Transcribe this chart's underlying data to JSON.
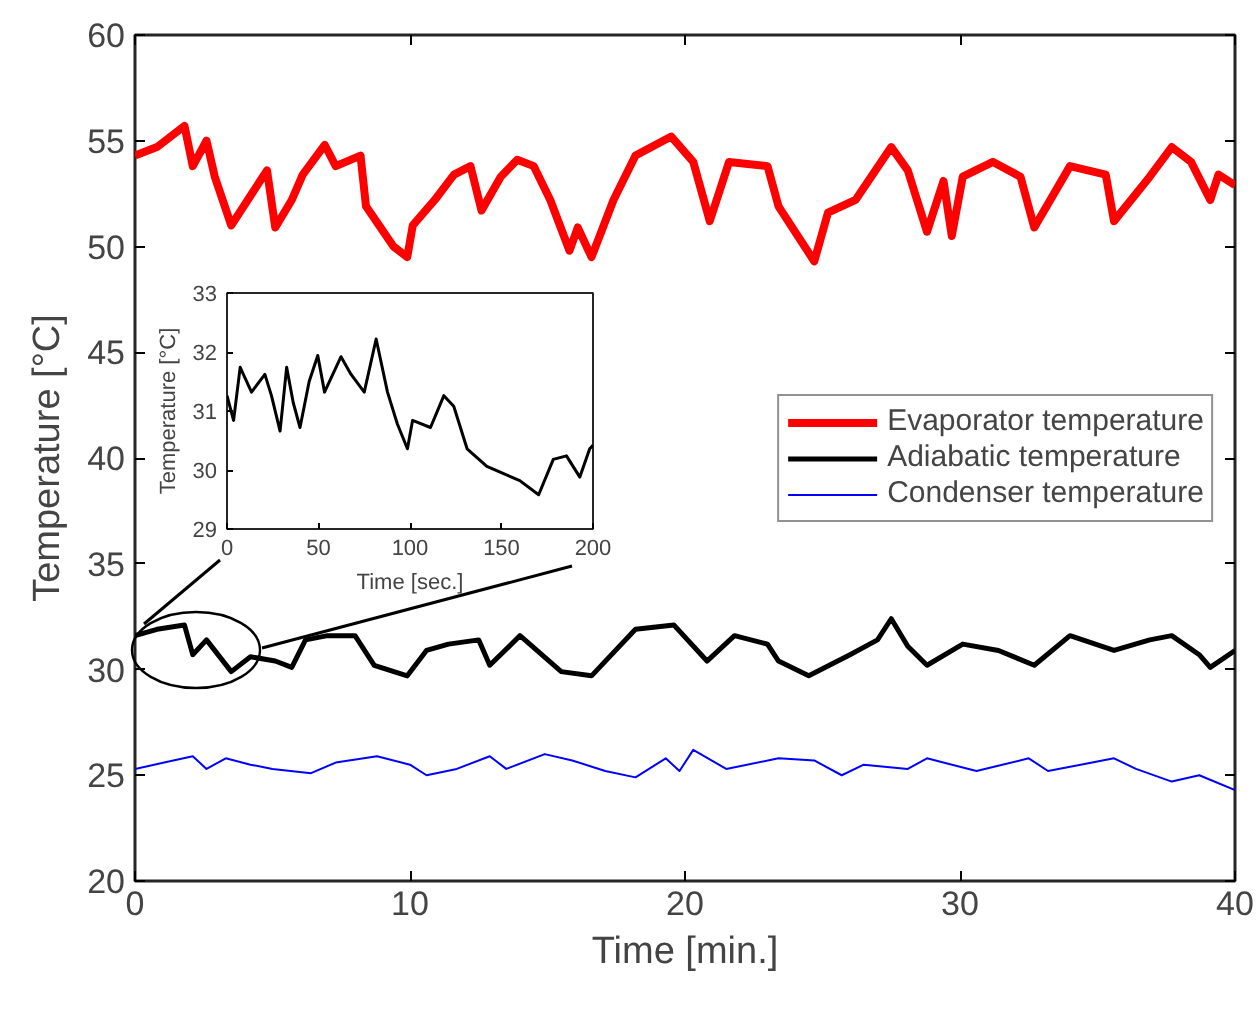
{
  "chart_data": [
    {
      "type": "line",
      "xlabel": "Time [min.]",
      "ylabel": "Temperature [°C]",
      "xlim": [
        0,
        40
      ],
      "ylim": [
        20,
        60
      ],
      "xticks": [
        0,
        10,
        20,
        30,
        40
      ],
      "yticks": [
        20,
        25,
        30,
        35,
        40,
        45,
        50,
        55,
        60
      ],
      "legend": "right",
      "grid": false,
      "series": [
        {
          "name": "Evaporator temperature",
          "color": "#ff0000",
          "x": [
            0,
            0.8,
            1.8,
            2.1,
            2.6,
            2.9,
            3.5,
            4.2,
            4.8,
            5.1,
            5.7,
            6.1,
            6.9,
            7.3,
            8.2,
            8.4,
            9.4,
            9.9,
            10.1,
            10.9,
            11.6,
            12.2,
            12.6,
            13.3,
            13.9,
            14.5,
            15.1,
            15.8,
            16.1,
            16.6,
            17.4,
            18.2,
            19.5,
            20.3,
            20.9,
            21.6,
            23,
            23.4,
            24.7,
            25.2,
            26.2,
            27.5,
            28.1,
            28.8,
            29.4,
            29.7,
            30.1,
            31.2,
            32.2,
            32.7,
            34,
            35.3,
            35.6,
            36.9,
            37.7,
            38.4,
            39.1,
            39.4,
            40
          ],
          "values": [
            54.3,
            54.7,
            55.7,
            53.8,
            55,
            53.3,
            51,
            52.4,
            53.6,
            50.9,
            52.2,
            53.4,
            54.8,
            53.8,
            54.3,
            51.9,
            50,
            49.5,
            51,
            52.2,
            53.4,
            53.8,
            51.7,
            53.3,
            54.1,
            53.8,
            52.2,
            49.8,
            50.9,
            49.5,
            52.2,
            54.3,
            55.2,
            54,
            51.2,
            54,
            53.8,
            51.9,
            49.3,
            51.6,
            52.2,
            54.7,
            53.6,
            50.7,
            53.1,
            50.5,
            53.3,
            54,
            53.3,
            50.9,
            53.8,
            53.4,
            51.2,
            53.3,
            54.7,
            54,
            52.2,
            53.4,
            52.9
          ]
        },
        {
          "name": "Adiabatic temperature",
          "color": "#000000",
          "x": [
            0,
            0.8,
            1.8,
            2.1,
            2.6,
            3.5,
            4.2,
            5.1,
            5.7,
            6.2,
            7,
            8,
            8.7,
            9.9,
            10.6,
            11.4,
            12.5,
            12.9,
            14,
            15.5,
            16.6,
            18.2,
            19.6,
            20.8,
            21.8,
            23,
            23.4,
            24.5,
            26,
            27,
            27.5,
            28.1,
            28.8,
            30.1,
            31.4,
            32.7,
            34,
            35.6,
            36.9,
            37.7,
            38.7,
            39.1,
            40
          ],
          "values": [
            31.6,
            31.9,
            32.1,
            30.7,
            31.4,
            29.9,
            30.6,
            30.4,
            30.1,
            31.4,
            31.6,
            31.6,
            30.2,
            29.7,
            30.9,
            31.2,
            31.4,
            30.2,
            31.6,
            29.9,
            29.7,
            31.9,
            32.1,
            30.4,
            31.6,
            31.2,
            30.4,
            29.7,
            30.7,
            31.4,
            32.4,
            31.1,
            30.2,
            31.2,
            30.9,
            30.2,
            31.6,
            30.9,
            31.4,
            31.6,
            30.7,
            30.1,
            30.9
          ]
        },
        {
          "name": "Condenser temperature",
          "color": "#0000ff",
          "x": [
            0,
            2.1,
            2.6,
            3.3,
            4.2,
            5,
            6.4,
            7.3,
            8.8,
            10,
            10.6,
            11.7,
            12.9,
            13.5,
            14.9,
            15.9,
            17.1,
            18.2,
            19.3,
            19.8,
            20.3,
            21.5,
            23.4,
            24.7,
            25.7,
            26.5,
            28.1,
            28.8,
            30.6,
            32.5,
            33.2,
            35.6,
            36.4,
            37.7,
            38.7,
            40
          ],
          "values": [
            25.3,
            25.9,
            25.3,
            25.8,
            25.5,
            25.3,
            25.1,
            25.6,
            25.9,
            25.5,
            25,
            25.3,
            25.9,
            25.3,
            26,
            25.7,
            25.2,
            24.9,
            25.8,
            25.2,
            26.2,
            25.3,
            25.8,
            25.7,
            25,
            25.5,
            25.3,
            25.8,
            25.2,
            25.8,
            25.2,
            25.8,
            25.3,
            24.7,
            25,
            24.3
          ]
        }
      ]
    },
    {
      "type": "line",
      "xlabel": "Time [sec.]",
      "ylabel": "Temperature [°C]",
      "xlim": [
        0,
        200
      ],
      "ylim": [
        29,
        33
      ],
      "xticks": [
        0,
        50,
        100,
        150,
        200
      ],
      "yticks": [
        29,
        30,
        31,
        32,
        33
      ],
      "grid": false,
      "series": [
        {
          "color": "#000000",
          "x": [
            0,
            3.6,
            7.2,
            13.4,
            20.7,
            24.3,
            29,
            32.6,
            36.2,
            39.9,
            44.9,
            49.6,
            53.3,
            62.3,
            67.8,
            75,
            81.5,
            87.7,
            93.1,
            98.6,
            101.4,
            111.2,
            118.5,
            123.9,
            131.2,
            142,
            160,
            170.3,
            178.3,
            185.5,
            192.8,
            198.2,
            200
          ],
          "values": [
            31.26,
            30.84,
            31.74,
            31.32,
            31.62,
            31.26,
            30.66,
            31.74,
            31.14,
            30.72,
            31.5,
            31.94,
            31.32,
            31.92,
            31.62,
            31.32,
            32.22,
            31.32,
            30.78,
            30.36,
            30.84,
            30.72,
            31.26,
            31.08,
            30.36,
            30.06,
            29.82,
            29.58,
            30.18,
            30.24,
            29.88,
            30.36,
            30.42
          ]
        }
      ]
    }
  ]
}
